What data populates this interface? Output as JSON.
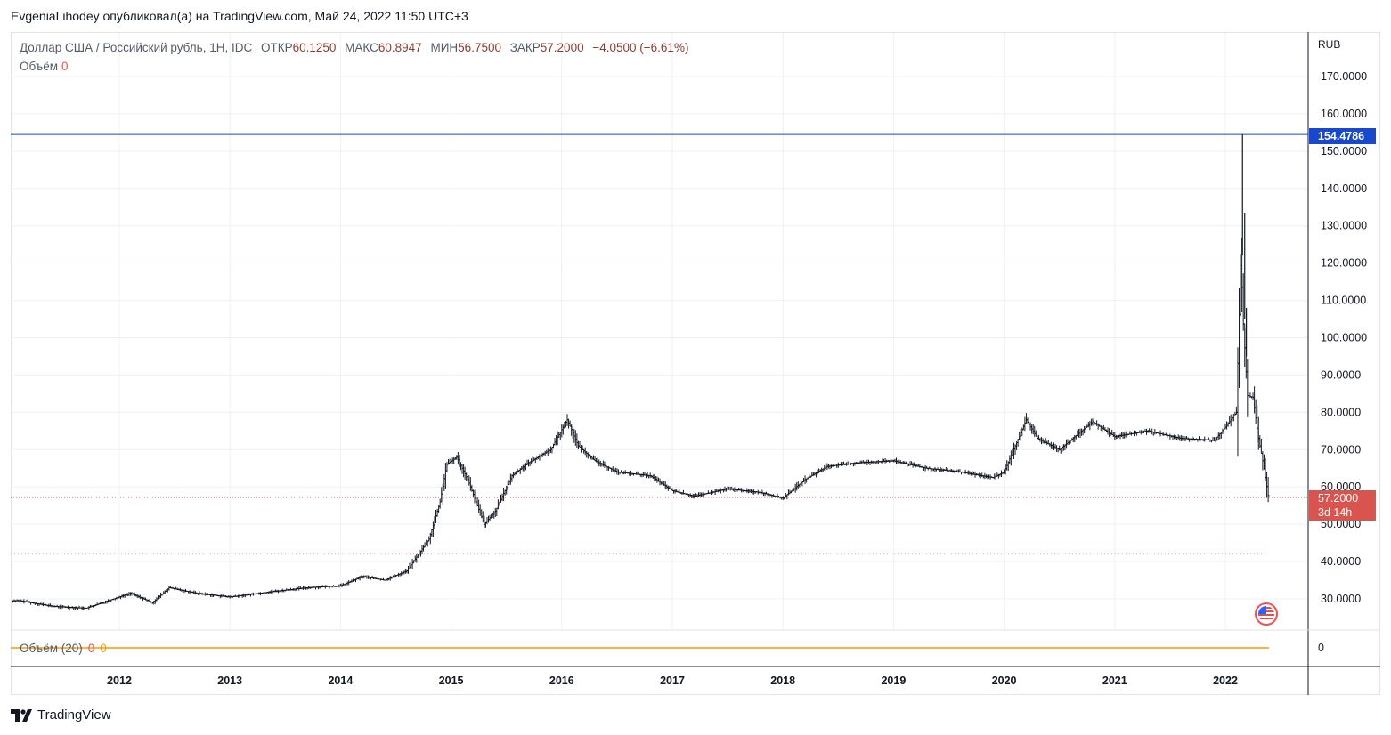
{
  "header": {
    "published_line": "EvgeniaLihodey опубликовал(а) на TradingView.com, Май 24, 2022 11:50 UTC+3"
  },
  "legend": {
    "symbol": "Доллар США / Российский рубль, 1Н, IDC",
    "open_label": "ОТКР",
    "open_value": "60.1250",
    "high_label": "МАКС",
    "high_value": "60.8947",
    "low_label": "МИН",
    "low_value": "56.7500",
    "close_label": "ЗАКР",
    "close_value": "57.2000",
    "change": "−4.0500 (−6.61%)",
    "volume_label": "Объём",
    "volume_value": "0",
    "volume20_label": "Объём (20)",
    "volume20_value_a": "0",
    "volume20_value_b": "0"
  },
  "axis": {
    "currency": "RUB",
    "price_ticks": [
      "170.0000",
      "160.0000",
      "150.0000",
      "140.0000",
      "130.0000",
      "120.0000",
      "110.0000",
      "100.0000",
      "90.0000",
      "80.0000",
      "70.0000",
      "60.0000",
      "50.0000",
      "40.0000",
      "30.0000"
    ],
    "volume_tick": "0",
    "year_ticks": [
      "2012",
      "2013",
      "2014",
      "2015",
      "2016",
      "2017",
      "2018",
      "2019",
      "2020",
      "2021",
      "2022"
    ]
  },
  "tags": {
    "high_line_value": "154.4786",
    "last_price": "57.2000",
    "countdown": "3d 14h"
  },
  "footer": {
    "brand": "TradingView"
  },
  "colors": {
    "bars": "#131722",
    "high_line": "#1848cc",
    "last_price": "#d9534f",
    "volume_ma": "#ff9800",
    "grid": "#eef0f3"
  },
  "chart_data": {
    "type": "line",
    "title": "Доллар США / Российский рубль, 1Н, IDC",
    "ylabel": "RUB",
    "ylim": [
      17,
      175
    ],
    "x": [
      "2011.1",
      "2011.4",
      "2011.7",
      "2011.9",
      "2012.1",
      "2012.3",
      "2012.45",
      "2012.7",
      "2013.0",
      "2013.4",
      "2013.7",
      "2014.0",
      "2014.2",
      "2014.4",
      "2014.6",
      "2014.8",
      "2014.9",
      "2014.96",
      "2015.05",
      "2015.15",
      "2015.3",
      "2015.4",
      "2015.55",
      "2015.7",
      "2015.9",
      "2016.05",
      "2016.15",
      "2016.3",
      "2016.5",
      "2016.8",
      "2017.0",
      "2017.2",
      "2017.5",
      "2017.8",
      "2018.0",
      "2018.2",
      "2018.4",
      "2018.7",
      "2019.0",
      "2019.3",
      "2019.6",
      "2019.9",
      "2020.0",
      "2020.2",
      "2020.3",
      "2020.5",
      "2020.8",
      "2021.0",
      "2021.3",
      "2021.6",
      "2021.9",
      "2022.0",
      "2022.1",
      "2022.14",
      "2022.16",
      "2022.2",
      "2022.25",
      "2022.3",
      "2022.35",
      "2022.39"
    ],
    "values": [
      29.5,
      28.0,
      27.5,
      29.5,
      31.5,
      29.0,
      33.0,
      31.5,
      30.5,
      32.0,
      33.0,
      33.5,
      36.0,
      35.0,
      37.5,
      46.0,
      56.0,
      66.0,
      68.0,
      62.0,
      50.0,
      53.5,
      63.0,
      66.5,
      70.0,
      78.0,
      71.0,
      67.0,
      64.0,
      63.0,
      59.0,
      57.5,
      59.5,
      58.5,
      57.0,
      62.0,
      65.5,
      66.5,
      67.0,
      65.0,
      64.0,
      62.5,
      64.0,
      78.0,
      73.0,
      70.0,
      77.5,
      73.5,
      75.0,
      73.0,
      72.5,
      76.0,
      80.0,
      122.0,
      105.0,
      84.5,
      84.0,
      73.0,
      65.0,
      57.2
    ],
    "high_line": 154.4786,
    "low_ref_line": 42.0,
    "last": 57.2,
    "grid": true,
    "legend": "top-left"
  }
}
